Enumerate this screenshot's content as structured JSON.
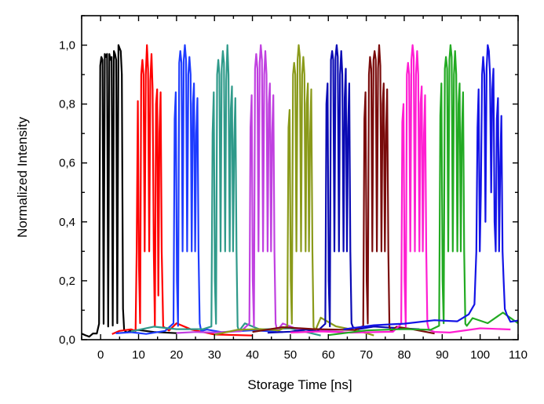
{
  "chart_data": {
    "type": "line",
    "title": "",
    "xlabel": "Storage Time [ns]",
    "ylabel": "Normalized Intensity",
    "xlim": [
      -5,
      110
    ],
    "ylim": [
      0,
      1.1
    ],
    "grid": false,
    "legend": "none",
    "x_ticks": [
      {
        "value": 0,
        "label": "0"
      },
      {
        "value": 10,
        "label": "10"
      },
      {
        "value": 20,
        "label": "20"
      },
      {
        "value": 30,
        "label": "30"
      },
      {
        "value": 40,
        "label": "40"
      },
      {
        "value": 50,
        "label": "50"
      },
      {
        "value": 60,
        "label": "60"
      },
      {
        "value": 70,
        "label": "70"
      },
      {
        "value": 80,
        "label": "80"
      },
      {
        "value": 90,
        "label": "90"
      },
      {
        "value": 100,
        "label": "100"
      },
      {
        "value": 110,
        "label": "110"
      }
    ],
    "y_ticks": [
      {
        "value": 0.0,
        "label": "0,0"
      },
      {
        "value": 0.2,
        "label": "0,2"
      },
      {
        "value": 0.4,
        "label": "0,4"
      },
      {
        "value": 0.6,
        "label": "0,6"
      },
      {
        "value": 0.8,
        "label": "0,8"
      },
      {
        "value": 1.0,
        "label": "1,0"
      }
    ],
    "series": [
      {
        "color": "#000000",
        "x": [
          -5,
          -4,
          -3,
          -2,
          -1,
          -0.4,
          -0.1,
          0.2,
          0.5,
          0.8,
          1.1,
          1.4,
          1.7,
          2,
          2.3,
          2.6,
          2.9,
          3.2,
          3.5,
          3.8,
          4.1,
          4.4,
          4.7,
          5,
          5.3,
          5.6,
          5.9,
          6.2,
          6.5,
          7,
          8,
          10,
          14,
          20
        ],
        "y": [
          0.02,
          0.02,
          0.015,
          0.02,
          0.015,
          0.05,
          0.93,
          0.96,
          0.95,
          0.05,
          0.97,
          0.96,
          0.97,
          0.05,
          0.97,
          0.95,
          0.96,
          0.05,
          0.98,
          0.97,
          0.95,
          0.05,
          1.0,
          0.99,
          0.98,
          0.9,
          0.1,
          0.03,
          0.03,
          0.03,
          0.035,
          0.03,
          0.02,
          0.02
        ]
      },
      {
        "color": "#ff0000",
        "x": [
          3,
          5,
          8,
          9.2,
          9.5,
          9.8,
          10.1,
          10.4,
          10.7,
          11,
          11.3,
          11.6,
          11.9,
          12.2,
          12.5,
          12.8,
          13.1,
          13.4,
          13.7,
          14,
          14.3,
          14.6,
          14.9,
          15.2,
          15.5,
          15.8,
          16.1,
          16.5,
          18,
          20,
          24,
          30,
          40
        ],
        "y": [
          0.02,
          0.025,
          0.03,
          0.03,
          0.3,
          0.81,
          0.25,
          0.05,
          0.9,
          0.95,
          0.9,
          0.3,
          0.9,
          1.0,
          0.92,
          0.3,
          0.88,
          0.97,
          0.85,
          0.3,
          0.05,
          0.8,
          0.85,
          0.15,
          0.7,
          0.84,
          0.3,
          0.05,
          0.03,
          0.05,
          0.03,
          0.02,
          0.02
        ]
      },
      {
        "color": "#1e3cff",
        "x": [
          4,
          8,
          12,
          17,
          19.2,
          19.5,
          19.8,
          20.1,
          20.4,
          20.7,
          21,
          21.3,
          21.6,
          21.9,
          22.2,
          22.5,
          22.8,
          23.1,
          23.4,
          23.7,
          24,
          24.3,
          24.6,
          24.9,
          25.2,
          25.5,
          25.8,
          26.1,
          26.5,
          28,
          32,
          40,
          48
        ],
        "y": [
          0.02,
          0.03,
          0.025,
          0.03,
          0.05,
          0.75,
          0.84,
          0.2,
          0.05,
          0.94,
          0.98,
          0.94,
          0.3,
          0.95,
          1.0,
          0.95,
          0.3,
          0.9,
          0.96,
          0.9,
          0.3,
          0.8,
          0.87,
          0.3,
          0.7,
          0.82,
          0.3,
          0.05,
          0.03,
          0.04,
          0.03,
          0.03,
          0.02
        ]
      },
      {
        "color": "#2f9a8a",
        "x": [
          8,
          14,
          20,
          27,
          29.2,
          29.5,
          29.8,
          30.1,
          30.4,
          30.7,
          31,
          31.3,
          31.6,
          31.9,
          32.2,
          32.5,
          32.8,
          33.1,
          33.4,
          33.7,
          34,
          34.3,
          34.6,
          34.9,
          35.2,
          35.5,
          35.8,
          36.1,
          36.5,
          38,
          42,
          50,
          58
        ],
        "y": [
          0.03,
          0.04,
          0.03,
          0.035,
          0.05,
          0.7,
          0.84,
          0.2,
          0.05,
          0.9,
          0.95,
          0.9,
          0.3,
          0.92,
          0.98,
          0.94,
          0.3,
          0.88,
          1.0,
          0.9,
          0.3,
          0.78,
          0.86,
          0.3,
          0.68,
          0.82,
          0.3,
          0.05,
          0.03,
          0.05,
          0.03,
          0.04,
          0.02
        ]
      },
      {
        "color": "#c040e0",
        "x": [
          20,
          25,
          30,
          37,
          39.2,
          39.5,
          39.8,
          40.1,
          40.4,
          40.7,
          41,
          41.3,
          41.6,
          41.9,
          42.2,
          42.5,
          42.8,
          43.1,
          43.4,
          43.7,
          44,
          44.3,
          44.6,
          44.9,
          45.2,
          45.5,
          45.8,
          46.1,
          46.5,
          48,
          52,
          58,
          64
        ],
        "y": [
          0.02,
          0.03,
          0.03,
          0.03,
          0.05,
          0.72,
          0.83,
          0.2,
          0.05,
          0.92,
          0.97,
          0.92,
          0.3,
          0.94,
          1.0,
          0.95,
          0.3,
          0.9,
          0.98,
          0.9,
          0.3,
          0.8,
          0.87,
          0.3,
          0.7,
          0.83,
          0.3,
          0.05,
          0.03,
          0.06,
          0.04,
          0.03,
          0.02
        ]
      },
      {
        "color": "#8a9a1a",
        "x": [
          30,
          36,
          42,
          47,
          49.2,
          49.5,
          49.8,
          50.1,
          50.4,
          50.7,
          51,
          51.3,
          51.6,
          51.9,
          52.2,
          52.5,
          52.8,
          53.1,
          53.4,
          53.7,
          54,
          54.3,
          54.6,
          54.9,
          55.2,
          55.5,
          55.8,
          56.1,
          56.5,
          58,
          62,
          68,
          72
        ],
        "y": [
          0.02,
          0.03,
          0.03,
          0.03,
          0.05,
          0.72,
          0.78,
          0.2,
          0.05,
          0.9,
          0.94,
          0.9,
          0.3,
          0.95,
          1.0,
          0.96,
          0.3,
          0.9,
          0.96,
          0.9,
          0.3,
          0.8,
          0.87,
          0.3,
          0.7,
          0.85,
          0.3,
          0.05,
          0.03,
          0.07,
          0.04,
          0.03,
          0.02
        ]
      },
      {
        "color": "#0a0ab4",
        "x": [
          44,
          50,
          54,
          57,
          59.2,
          59.5,
          59.8,
          60.1,
          60.4,
          60.7,
          61,
          61.3,
          61.6,
          61.9,
          62.2,
          62.5,
          62.8,
          63.1,
          63.4,
          63.7,
          64,
          64.3,
          64.6,
          64.9,
          65.2,
          65.5,
          65.8,
          66.1,
          66.5,
          68,
          72,
          78,
          84
        ],
        "y": [
          0.02,
          0.03,
          0.04,
          0.03,
          0.05,
          0.8,
          0.87,
          0.2,
          0.05,
          0.95,
          0.98,
          0.95,
          0.3,
          0.96,
          1.0,
          0.96,
          0.3,
          0.9,
          0.98,
          0.9,
          0.3,
          0.82,
          0.92,
          0.3,
          0.72,
          0.87,
          0.3,
          0.05,
          0.04,
          0.04,
          0.05,
          0.04,
          0.03
        ]
      },
      {
        "color": "#7a0c0c",
        "x": [
          40,
          48,
          56,
          67,
          69.2,
          69.5,
          69.8,
          70.1,
          70.4,
          70.7,
          71,
          71.3,
          71.6,
          71.9,
          72.2,
          72.5,
          72.8,
          73.1,
          73.4,
          73.7,
          74,
          74.3,
          74.6,
          74.9,
          75.2,
          75.5,
          75.8,
          76.1,
          76.5,
          78,
          82,
          88
        ],
        "y": [
          0.03,
          0.04,
          0.03,
          0.03,
          0.05,
          0.75,
          0.84,
          0.2,
          0.05,
          0.9,
          0.96,
          0.92,
          0.3,
          0.95,
          0.98,
          0.95,
          0.3,
          0.92,
          1.0,
          0.93,
          0.3,
          0.8,
          0.87,
          0.3,
          0.7,
          0.85,
          0.3,
          0.05,
          0.03,
          0.04,
          0.03,
          0.02
        ]
      },
      {
        "color": "#ff1ed2",
        "x": [
          50,
          58,
          66,
          77,
          79.2,
          79.5,
          79.8,
          80.1,
          80.4,
          80.7,
          81,
          81.3,
          81.6,
          81.9,
          82.2,
          82.5,
          82.8,
          83.1,
          83.4,
          83.7,
          84,
          84.3,
          84.6,
          84.9,
          85.2,
          85.5,
          85.8,
          86.1,
          86.5,
          88,
          92,
          100,
          108
        ],
        "y": [
          0.02,
          0.03,
          0.03,
          0.03,
          0.05,
          0.74,
          0.8,
          0.2,
          0.05,
          0.9,
          0.94,
          0.9,
          0.3,
          0.95,
          1.0,
          0.96,
          0.3,
          0.9,
          0.98,
          0.9,
          0.3,
          0.8,
          0.86,
          0.3,
          0.7,
          0.83,
          0.3,
          0.05,
          0.03,
          0.03,
          0.03,
          0.04,
          0.03
        ]
      },
      {
        "color": "#22aa22",
        "x": [
          60,
          70,
          80,
          87,
          89.2,
          89.5,
          89.8,
          90.1,
          90.4,
          90.7,
          91,
          91.3,
          91.6,
          91.9,
          92.2,
          92.5,
          92.8,
          93.1,
          93.4,
          93.7,
          94,
          94.3,
          94.6,
          94.9,
          95.2,
          95.5,
          95.8,
          96.1,
          96.5,
          98,
          102,
          106,
          110
        ],
        "y": [
          0.02,
          0.03,
          0.03,
          0.03,
          0.05,
          0.76,
          0.87,
          0.2,
          0.05,
          0.92,
          0.96,
          0.92,
          0.3,
          0.95,
          1.0,
          0.96,
          0.3,
          0.9,
          0.98,
          0.9,
          0.3,
          0.8,
          0.87,
          0.3,
          0.7,
          0.84,
          0.3,
          0.06,
          0.05,
          0.07,
          0.05,
          0.09,
          0.06
        ]
      },
      {
        "color": "#1414e6",
        "x": [
          64,
          72,
          80,
          88,
          94,
          97,
          98.5,
          99,
          99.3,
          99.6,
          99.9,
          100.2,
          100.5,
          100.8,
          101.1,
          101.4,
          101.7,
          102,
          102.3,
          102.6,
          102.9,
          103.2,
          103.5,
          103.8,
          104.1,
          104.4,
          104.7,
          105,
          105.3,
          105.6,
          105.9,
          106.2,
          106.5,
          107,
          108,
          110
        ],
        "y": [
          0.03,
          0.05,
          0.06,
          0.07,
          0.06,
          0.08,
          0.12,
          0.3,
          0.72,
          0.85,
          0.3,
          0.5,
          0.9,
          0.96,
          0.9,
          0.4,
          0.92,
          1.0,
          0.98,
          0.9,
          0.5,
          0.85,
          0.92,
          0.4,
          0.3,
          0.75,
          0.82,
          0.3,
          0.6,
          0.76,
          0.3,
          0.2,
          0.1,
          0.08,
          0.06,
          0.07
        ]
      }
    ]
  }
}
